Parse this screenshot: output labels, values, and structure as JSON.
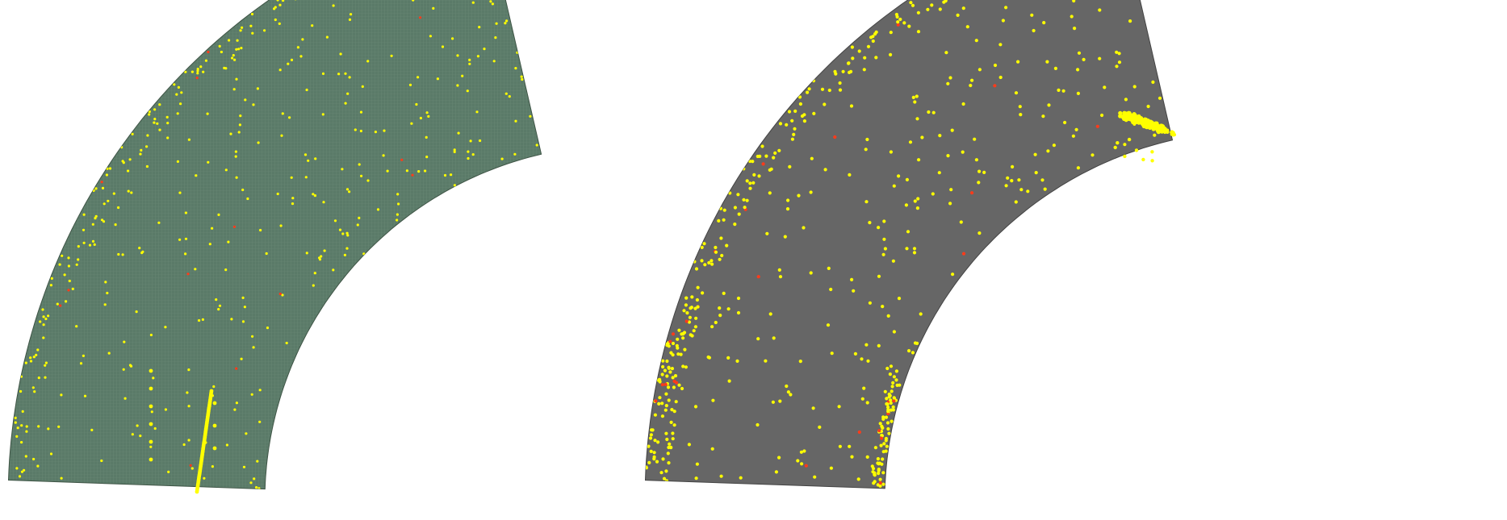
{
  "colors": {
    "background": "#ffffff",
    "left_fill": "#5a7a68",
    "left_mesh": "#6d8c79",
    "left_edge": "#3f5546",
    "right_fill": "#666666",
    "right_edge": "#444444",
    "point": "#ffff00",
    "point_alt": "#e0e000",
    "point_hot": "#ff3b1a"
  },
  "panels": [
    {
      "id": "left",
      "fill_key": "left_fill",
      "mesh": true,
      "cluster": "line-streaks"
    },
    {
      "id": "right",
      "fill_key": "right_fill",
      "mesh": false,
      "cluster": "blob"
    }
  ],
  "points_per_panel": 460
}
